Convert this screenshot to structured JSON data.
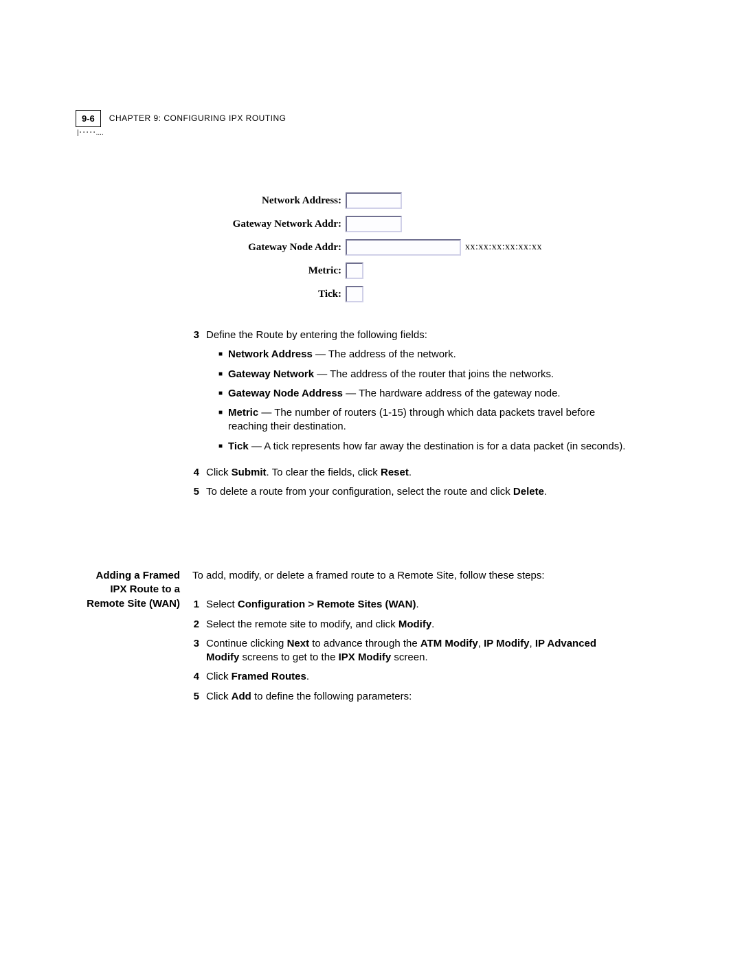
{
  "header": {
    "page_num": "9-6",
    "chapter_label": "CHAPTER 9: CONFIGURING IPX ROUTING"
  },
  "form": {
    "rows": [
      {
        "label": "Network Address:",
        "size": "small",
        "hint": ""
      },
      {
        "label": "Gateway Network Addr:",
        "size": "small",
        "hint": ""
      },
      {
        "label": "Gateway Node Addr:",
        "size": "large",
        "hint": "xx:xx:xx:xx:xx:xx"
      },
      {
        "label": "Metric:",
        "size": "tiny",
        "hint": ""
      },
      {
        "label": "Tick:",
        "size": "tiny",
        "hint": ""
      }
    ]
  },
  "step3": {
    "num": "3",
    "intro": "Define the Route by entering the following fields:",
    "bullets": [
      {
        "term": "Network Address",
        "desc": " — The address of the network."
      },
      {
        "term": "Gateway Network",
        "desc": " — The address of the router that joins the networks."
      },
      {
        "term": "Gateway Node Address",
        "desc": " — The hardware address of the gateway node."
      },
      {
        "term": "Metric",
        "desc": " — The number of routers (1-15) through which data packets travel before reaching their destination."
      },
      {
        "term": "Tick",
        "desc": " — A tick represents how far away the destination is for a data packet (in seconds)."
      }
    ]
  },
  "step4": {
    "num": "4",
    "pre": "Click ",
    "b1": "Submit",
    "mid": ". To clear the fields, click ",
    "b2": "Reset",
    "post": "."
  },
  "step5": {
    "num": "5",
    "pre": "To delete a route from your configuration, select the route and click ",
    "b1": "Delete",
    "post": "."
  },
  "section2": {
    "heading": "Adding a Framed IPX Route to a Remote Site (WAN)",
    "intro": "To add, modify, or delete a framed route to a Remote Site, follow these steps:",
    "steps": {
      "s1": {
        "num": "1",
        "pre": "Select ",
        "b1": "Configuration > Remote Sites (WAN)",
        "post": "."
      },
      "s2": {
        "num": "2",
        "pre": "Select the remote site to modify, and click ",
        "b1": "Modify",
        "post": "."
      },
      "s3": {
        "num": "3",
        "pre": "Continue clicking ",
        "b1": "Next",
        "mid1": " to advance through the ",
        "b2": "ATM Modify",
        "mid2": ", ",
        "b3": "IP Modify",
        "mid3": ", ",
        "b4": "IP Advanced Modify",
        "mid4": " screens to get to the ",
        "b5": "IPX Modify",
        "post": " screen."
      },
      "s4": {
        "num": "4",
        "pre": "Click ",
        "b1": "Framed Routes",
        "post": "."
      },
      "s5": {
        "num": "5",
        "pre": "Click ",
        "b1": "Add",
        "post": " to define the following parameters:"
      }
    }
  }
}
